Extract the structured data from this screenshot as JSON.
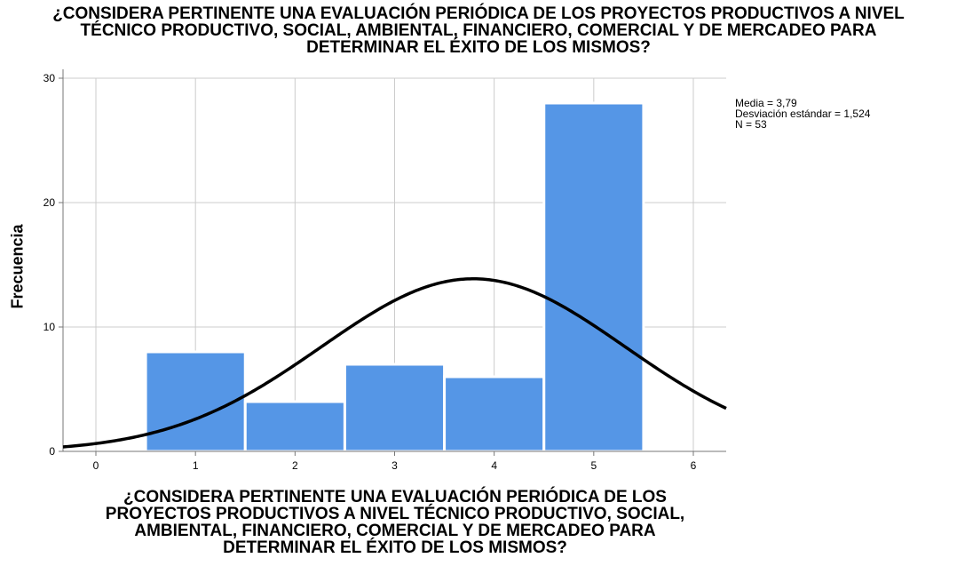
{
  "title_lines": [
    "¿CONSIDERA PERTINENTE UNA EVALUACIÓN PERIÓDICA DE LOS PROYECTOS PRODUCTIVOS A NIVEL",
    "TÉCNICO PRODUCTIVO, SOCIAL, AMBIENTAL, FINANCIERO, COMERCIAL Y DE MERCADEO PARA",
    "DETERMINAR EL ÉXITO DE LOS MISMOS?"
  ],
  "xlabel_lines": [
    "¿CONSIDERA PERTINENTE UNA EVALUACIÓN PERIÓDICA DE LOS",
    "PROYECTOS PRODUCTIVOS A NIVEL TÉCNICO PRODUCTIVO, SOCIAL,",
    "AMBIENTAL, FINANCIERO, COMERCIAL Y DE MERCADEO PARA",
    "DETERMINAR EL ÉXITO DE LOS MISMOS?"
  ],
  "ylabel": "Frecuencia",
  "stats": {
    "mean": "Media = 3,79",
    "sd": "Desviación estándar = 1,524",
    "n": "N = 53"
  },
  "chart_data": {
    "type": "bar",
    "subtype": "histogram_with_normal_curve",
    "categories": [
      "1",
      "2",
      "3",
      "4",
      "5"
    ],
    "x": [
      1,
      2,
      3,
      4,
      5
    ],
    "values": [
      8,
      4,
      7,
      6,
      28
    ],
    "xlim": [
      -0.33,
      6.33
    ],
    "ylim": [
      0,
      30
    ],
    "xticks": [
      0,
      1,
      2,
      3,
      4,
      5,
      6
    ],
    "yticks": [
      0,
      10,
      20,
      30
    ],
    "grid": true,
    "normal_curve": {
      "mean": 3.79,
      "sd": 1.524,
      "n": 53,
      "bin_width": 1
    },
    "colors": {
      "bar": "#5596e6",
      "bar_edge": "#ffffff",
      "curve": "#000000",
      "grid": "#cccccc",
      "axis": "#777777"
    }
  }
}
